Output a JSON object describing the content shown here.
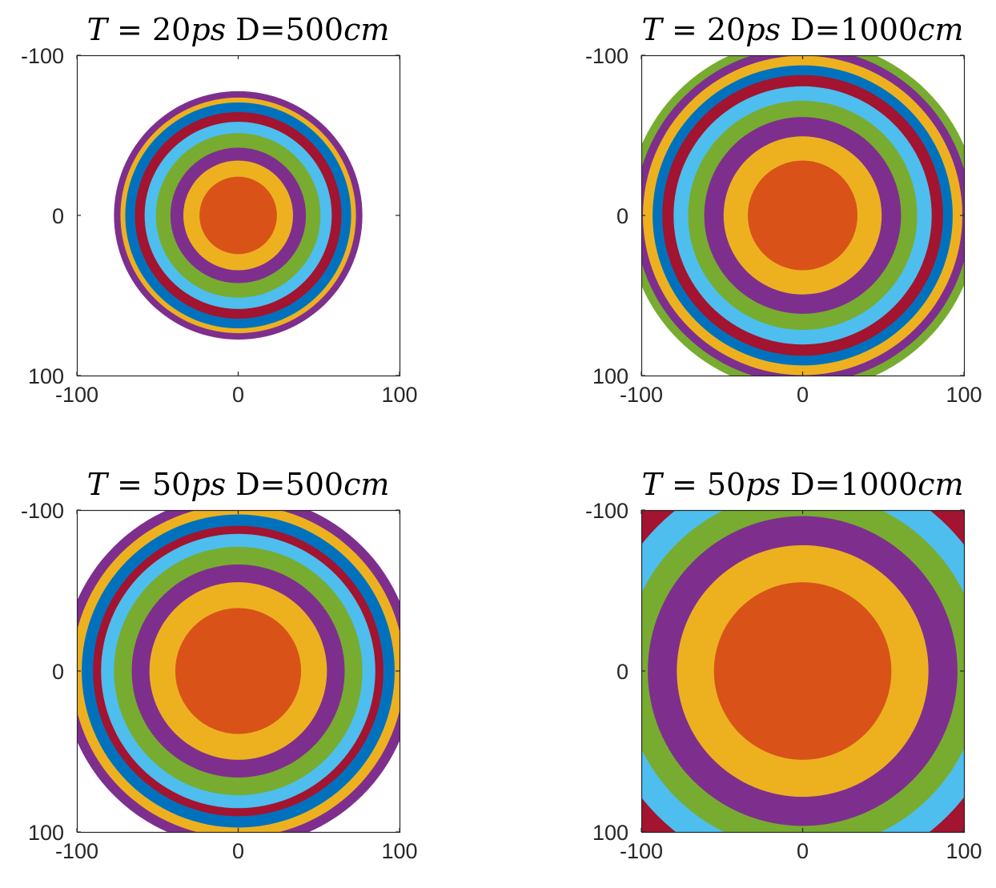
{
  "colors": [
    "#D95319",
    "#EDB120",
    "#7E2F8E",
    "#77AC30",
    "#4DBEEE",
    "#A2142F",
    "#0072BD"
  ],
  "chart_data": [
    {
      "type": "heatmap",
      "title": {
        "T": "T",
        "eq": " = ",
        "num": "20",
        "unit": "ps",
        "d": " D=",
        "dnum": "500",
        "dunit": "cm"
      },
      "xlim": [
        -100,
        100
      ],
      "ylim": [
        -100,
        100
      ],
      "y_reversed": true,
      "xticks": [
        "-100",
        "0",
        "100"
      ],
      "yticks": [
        "-100",
        "0",
        "100"
      ],
      "max_radius": 77,
      "ring_outer_radii": [
        24,
        34,
        42,
        51,
        58,
        64,
        70,
        73,
        77
      ]
    },
    {
      "type": "heatmap",
      "title": {
        "T": "T",
        "eq": " = ",
        "num": "20",
        "unit": "ps",
        "d": " D=",
        "dnum": "1000",
        "dunit": "cm"
      },
      "xlim": [
        -100,
        100
      ],
      "ylim": [
        -100,
        100
      ],
      "y_reversed": true,
      "xticks": [
        "-100",
        "0",
        "100"
      ],
      "yticks": [
        "-100",
        "0",
        "100"
      ],
      "max_radius": 109,
      "ring_outer_radii": [
        34,
        49,
        61,
        71,
        80,
        87,
        93,
        99,
        104,
        109
      ]
    },
    {
      "type": "heatmap",
      "title": {
        "T": "T",
        "eq": " = ",
        "num": "50",
        "unit": "ps",
        "d": " D=",
        "dnum": "500",
        "dunit": "cm"
      },
      "xlim": [
        -100,
        100
      ],
      "ylim": [
        -100,
        100
      ],
      "y_reversed": true,
      "xticks": [
        "-100",
        "0",
        "100"
      ],
      "yticks": [
        "-100",
        "0",
        "100"
      ],
      "max_radius": 109,
      "ring_outer_radii": [
        39,
        55,
        66,
        77,
        85,
        90,
        97,
        103,
        109
      ]
    },
    {
      "type": "heatmap",
      "title": {
        "T": "T",
        "eq": " = ",
        "num": "50",
        "unit": "ps",
        "d": " D=",
        "dnum": "1000",
        "dunit": "cm"
      },
      "xlim": [
        -100,
        100
      ],
      "ylim": [
        -100,
        100
      ],
      "y_reversed": true,
      "xticks": [
        "-100",
        "0",
        "100"
      ],
      "yticks": [
        "-100",
        "0",
        "100"
      ],
      "max_radius": 142,
      "ring_outer_radii": [
        55,
        78,
        96,
        111,
        127,
        142
      ]
    }
  ]
}
